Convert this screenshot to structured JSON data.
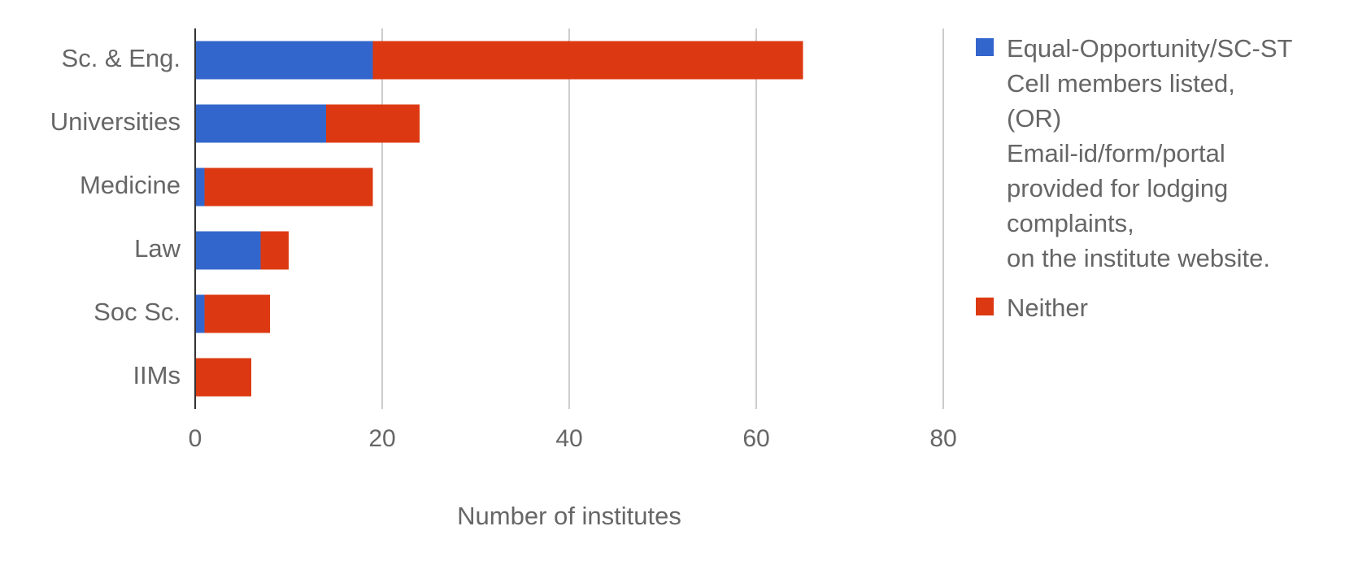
{
  "chart_data": {
    "type": "stacked-bar-horizontal",
    "x_label": "Number of institutes",
    "categories": [
      "Sc. & Eng.",
      "Universities",
      "Medicine",
      "Law",
      "Soc Sc.",
      "IIMs"
    ],
    "series": [
      {
        "name": "Equal-Opportunity/SC-ST\nCell members listed,\n(OR)\nEmail-id/form/portal\nprovided for lodging\ncomplaints,\non the institute website.",
        "color": "#3366cc",
        "values": [
          19,
          14,
          1,
          7,
          1,
          0
        ]
      },
      {
        "name": "Neither",
        "color": "#dc3912",
        "values": [
          46,
          10,
          18,
          3,
          7,
          6
        ]
      }
    ],
    "xlim": [
      0,
      80
    ],
    "xticks": [
      0,
      20,
      40,
      60,
      80
    ],
    "grid": true,
    "legend": "right"
  }
}
